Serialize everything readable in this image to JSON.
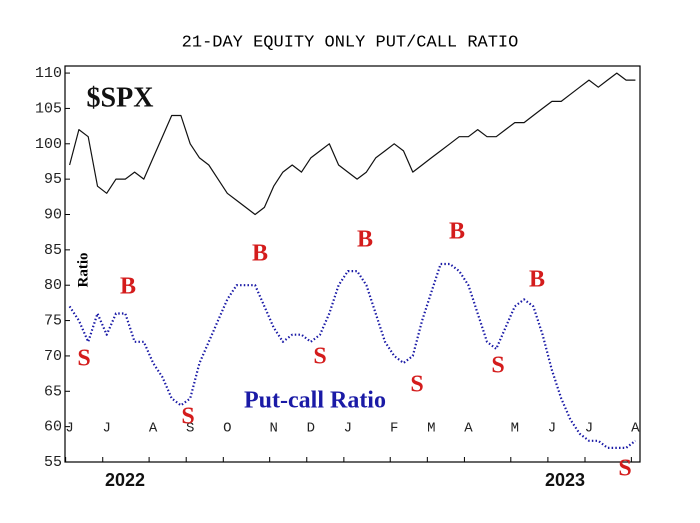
{
  "chart_data": {
    "type": "line",
    "title": "21-DAY EQUITY ONLY PUT/CALL RATIO",
    "y_label": "Ratio",
    "categories": [
      "J",
      null,
      null,
      null,
      "J",
      null,
      null,
      null,
      null,
      "A",
      null,
      null,
      null,
      "S",
      null,
      null,
      null,
      "O",
      null,
      null,
      null,
      null,
      "N",
      null,
      null,
      null,
      "D",
      null,
      null,
      null,
      "J",
      null,
      null,
      null,
      null,
      "F",
      null,
      null,
      null,
      "M",
      null,
      null,
      null,
      "A",
      null,
      null,
      null,
      null,
      "M",
      null,
      null,
      null,
      "J",
      null,
      null,
      null,
      "J",
      null,
      null,
      null,
      null,
      "A"
    ],
    "x_group_labels": [
      "2022",
      "2023"
    ],
    "series": [
      {
        "name": "$SPX",
        "color": "#111111",
        "values": [
          97,
          102,
          101,
          94,
          93,
          95,
          95,
          96,
          95,
          98,
          101,
          104,
          104,
          100,
          98,
          97,
          95,
          93,
          92,
          91,
          90,
          91,
          94,
          96,
          97,
          96,
          98,
          99,
          100,
          97,
          96,
          95,
          96,
          98,
          99,
          100,
          99,
          96,
          97,
          98,
          99,
          100,
          101,
          101,
          102,
          101,
          101,
          102,
          103,
          103,
          104,
          105,
          106,
          106,
          107,
          108,
          109,
          108,
          109,
          110,
          109,
          109
        ]
      },
      {
        "name": "Put-call Ratio",
        "color": "#1a1aa6",
        "values": [
          77,
          75,
          72,
          76,
          73,
          76,
          76,
          72,
          72,
          69,
          67,
          64,
          63,
          64,
          69,
          72,
          75,
          78,
          80,
          80,
          80,
          77,
          74,
          72,
          73,
          73,
          72,
          73,
          76,
          80,
          82,
          82,
          80,
          76,
          72,
          70,
          69,
          70,
          75,
          79,
          83,
          83,
          82,
          80,
          76,
          72,
          71,
          74,
          77,
          78,
          77,
          73,
          68,
          64,
          61,
          59,
          58,
          58,
          57,
          57,
          57,
          58
        ]
      }
    ],
    "annotations": [
      "S",
      "B",
      "S",
      "B",
      "S",
      "B",
      "S",
      "B",
      "S",
      "B",
      "S"
    ],
    "annotation_color": "#d41c1c",
    "ylim": [
      55,
      111
    ],
    "yticks": [
      55,
      60,
      65,
      70,
      75,
      80,
      85,
      90,
      95,
      100,
      105,
      110
    ]
  }
}
